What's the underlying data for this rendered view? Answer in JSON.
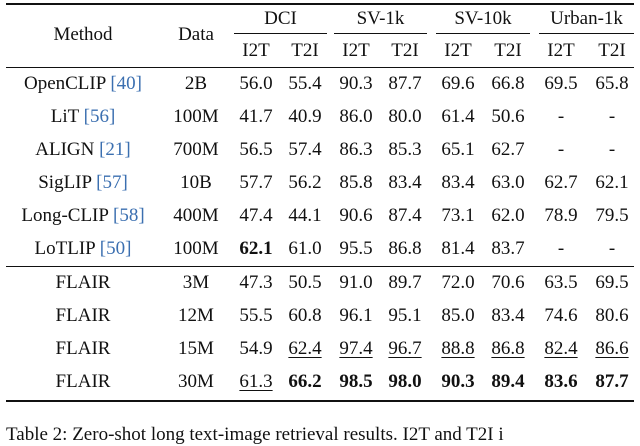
{
  "table": {
    "header": {
      "method": "Method",
      "data": "Data",
      "groups": [
        {
          "name": "DCI",
          "subs": [
            "I2T",
            "T2I"
          ]
        },
        {
          "name": "SV-1k",
          "subs": [
            "I2T",
            "T2I"
          ]
        },
        {
          "name": "SV-10k",
          "subs": [
            "I2T",
            "T2I"
          ]
        },
        {
          "name": "Urban-1k",
          "subs": [
            "I2T",
            "T2I"
          ]
        }
      ]
    },
    "sections": [
      [
        {
          "method": "OpenCLIP",
          "ref": "[40]",
          "data": "2B",
          "cells": [
            "56.0",
            "55.4",
            "90.3",
            "87.7",
            "69.6",
            "66.8",
            "69.5",
            "65.8"
          ]
        },
        {
          "method": "LiT",
          "ref": "[56]",
          "data": "100M",
          "cells": [
            "41.7",
            "40.9",
            "86.0",
            "80.0",
            "61.4",
            "50.6",
            "-",
            "-"
          ]
        },
        {
          "method": "ALIGN",
          "ref": "[21]",
          "data": "700M",
          "cells": [
            "56.5",
            "57.4",
            "86.3",
            "85.3",
            "65.1",
            "62.7",
            "-",
            "-"
          ]
        },
        {
          "method": "SigLIP",
          "ref": "[57]",
          "data": "10B",
          "cells": [
            "57.7",
            "56.2",
            "85.8",
            "83.4",
            "83.4",
            "63.0",
            "62.7",
            "62.1"
          ]
        },
        {
          "method": "Long-CLIP",
          "ref": "[58]",
          "data": "400M",
          "cells": [
            "47.4",
            "44.1",
            "90.6",
            "87.4",
            "73.1",
            "62.0",
            "78.9",
            "79.5"
          ]
        },
        {
          "method": "LoTLIP",
          "ref": "[50]",
          "data": "100M",
          "cells": [
            {
              "text": "62.1",
              "style": "bold"
            },
            "61.0",
            "95.5",
            "86.8",
            "81.4",
            "83.7",
            "-",
            "-"
          ]
        }
      ],
      [
        {
          "method": "FLAIR",
          "data": "3M",
          "cells": [
            "47.3",
            "50.5",
            "91.0",
            "89.7",
            "72.0",
            "70.6",
            "63.5",
            "69.5"
          ]
        },
        {
          "method": "FLAIR",
          "data": "12M",
          "cells": [
            "55.5",
            "60.8",
            "96.1",
            "95.1",
            "85.0",
            "83.4",
            "74.6",
            "80.6"
          ]
        },
        {
          "method": "FLAIR",
          "data": "15M",
          "cells": [
            "54.9",
            {
              "text": "62.4",
              "style": "underline"
            },
            {
              "text": "97.4",
              "style": "underline"
            },
            {
              "text": "96.7",
              "style": "underline"
            },
            {
              "text": "88.8",
              "style": "underline"
            },
            {
              "text": "86.8",
              "style": "underline"
            },
            {
              "text": "82.4",
              "style": "underline"
            },
            {
              "text": "86.6",
              "style": "underline"
            }
          ]
        },
        {
          "method": "FLAIR",
          "data": "30M",
          "cells": [
            {
              "text": "61.3",
              "style": "underline"
            },
            {
              "text": "66.2",
              "style": "bold"
            },
            {
              "text": "98.5",
              "style": "bold"
            },
            {
              "text": "98.0",
              "style": "bold"
            },
            {
              "text": "90.3",
              "style": "bold"
            },
            {
              "text": "89.4",
              "style": "bold"
            },
            {
              "text": "83.6",
              "style": "bold"
            },
            {
              "text": "87.7",
              "style": "bold"
            }
          ]
        }
      ]
    ],
    "caption": "Table 2: Zero-shot long text-image retrieval results. I2T and T2I i"
  }
}
